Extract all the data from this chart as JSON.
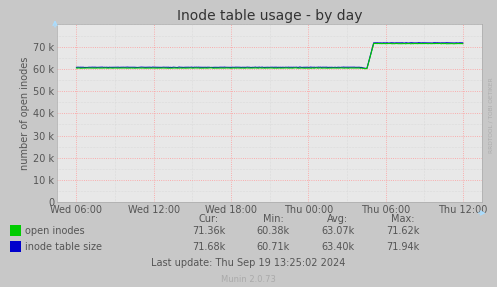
{
  "title": "Inode table usage - by day",
  "ylabel": "number of open inodes",
  "background_color": "#c8c8c8",
  "plot_bg_color": "#e8e8e8",
  "grid_color_major": "#ff9999",
  "grid_color_minor": "#d0d0d0",
  "yticks": [
    0,
    10000,
    20000,
    30000,
    40000,
    50000,
    60000,
    70000
  ],
  "ytick_labels": [
    "0",
    "10 k",
    "20 k",
    "30 k",
    "40 k",
    "50 k",
    "60 k",
    "70 k"
  ],
  "xtick_labels": [
    "Wed 06:00",
    "Wed 12:00",
    "Wed 18:00",
    "Thu 00:00",
    "Thu 06:00",
    "Thu 12:00"
  ],
  "open_inodes_color": "#00cc00",
  "inode_table_color": "#0000cc",
  "watermark": "RRDTOOL / TOBI OETIKER",
  "footer": "Munin 2.0.73",
  "last_update": "Last update: Thu Sep 19 13:25:02 2024",
  "legend": [
    {
      "label": "open inodes",
      "cur": "71.36k",
      "min": "60.38k",
      "avg": "63.07k",
      "max": "71.62k",
      "color": "#00cc00"
    },
    {
      "label": "inode table size",
      "cur": "71.68k",
      "min": "60.71k",
      "avg": "63.40k",
      "max": "71.94k",
      "color": "#0000cc"
    }
  ],
  "ylim": [
    0,
    80000
  ],
  "n_points": 400
}
